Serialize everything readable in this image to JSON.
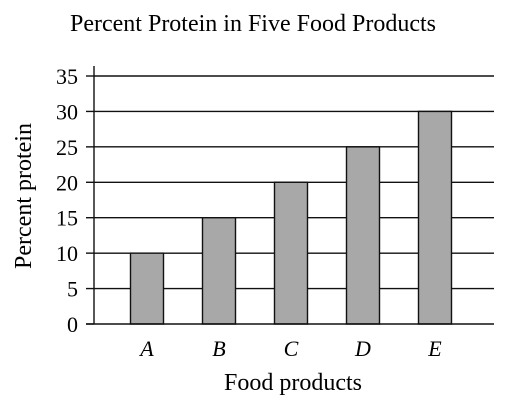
{
  "chart_data": {
    "type": "bar",
    "title": "Percent Protein in Five Food Products",
    "xlabel": "Food products",
    "ylabel": "Percent protein",
    "categories": [
      "A",
      "B",
      "C",
      "D",
      "E"
    ],
    "values": [
      10,
      15,
      20,
      25,
      30
    ],
    "ylim": [
      0,
      35
    ],
    "yticks": [
      0,
      5,
      10,
      15,
      20,
      25,
      30,
      35
    ],
    "grid": true,
    "colors": {
      "bar_fill": "#a8a8a8",
      "bar_stroke": "#111111",
      "axis": "#111111",
      "grid": "#111111"
    }
  }
}
